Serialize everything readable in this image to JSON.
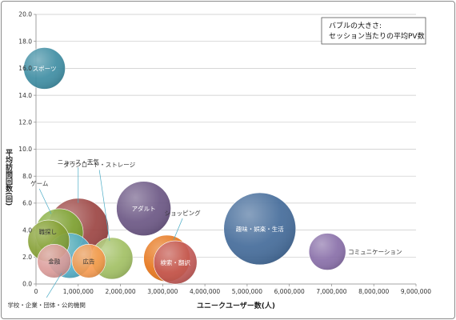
{
  "chart_data": {
    "type": "bubble",
    "title": "",
    "xlabel": "ユニークユーザー数(人)",
    "ylabel": "平均訪問回数(回)",
    "xlim": [
      0,
      9000000
    ],
    "ylim": [
      0,
      20
    ],
    "x_ticks": [
      "0",
      "1,000,000",
      "2,000,000",
      "3,000,000",
      "4,000,000",
      "5,000,000",
      "6,000,000",
      "7,000,000",
      "8,000,000",
      "9,000,000"
    ],
    "y_ticks": [
      "0.0",
      "2.0",
      "4.0",
      "6.0",
      "8.0",
      "10.0",
      "12.0",
      "14.0",
      "16.0",
      "18.0",
      "20.0"
    ],
    "grid": true,
    "legend": "none",
    "note": {
      "line1": "バブルの大きさ:",
      "line2": "セッション当たりの平均PV数"
    },
    "series": [
      {
        "label": "スポーツ",
        "x": 200000,
        "y": 16.0,
        "size": 26,
        "color": "#31859c",
        "label_color": "#ffffff",
        "label_pos": "inside",
        "anchor_x": 200000,
        "anchor_y": 16.0
      },
      {
        "label": "ニュース・天気",
        "x": 1000000,
        "y": 4.1,
        "size": 38,
        "color": "#953735",
        "label_color": "#333333",
        "label_pos": "callout",
        "anchor_x": 1000000,
        "anchor_y": 8.9
      },
      {
        "label": "ゲーム",
        "x": 550000,
        "y": 3.8,
        "size": 30,
        "color": "#7aa62e",
        "label_color": "#333333",
        "label_pos": "callout",
        "anchor_x": 80000,
        "anchor_y": 7.3
      },
      {
        "label": "職探し",
        "x": 300000,
        "y": 3.2,
        "size": 26,
        "color": "#7f9b2a",
        "label_color": "#333333",
        "label_pos": "inside-left",
        "anchor_x": 30000,
        "anchor_y": 3.9
      },
      {
        "label": "学校・企業・団体・公的機関",
        "x": 800000,
        "y": 2.1,
        "size": 28,
        "color": "#4bacc6",
        "label_color": "#333333",
        "label_pos": "callout",
        "anchor_x": 250000,
        "anchor_y": -1.6
      },
      {
        "label": "金融",
        "x": 430000,
        "y": 1.7,
        "size": 21,
        "color": "#d99694",
        "label_color": "#333333",
        "label_pos": "inside",
        "anchor_x": 430000,
        "anchor_y": 1.7
      },
      {
        "label": "広告",
        "x": 1250000,
        "y": 1.7,
        "size": 21,
        "color": "#f79646",
        "label_color": "#333333",
        "label_pos": "inside",
        "anchor_x": 1250000,
        "anchor_y": 1.7
      },
      {
        "label": "ダウンロード・ストレージ",
        "x": 1800000,
        "y": 1.9,
        "size": 26,
        "color": "#9bbb59",
        "label_color": "#333333",
        "label_pos": "callout",
        "anchor_x": 1500000,
        "anchor_y": 8.7
      },
      {
        "label": "アダルト",
        "x": 2550000,
        "y": 5.6,
        "size": 34,
        "color": "#604a7b",
        "label_color": "#ffffff",
        "label_pos": "inside",
        "anchor_x": 2550000,
        "anchor_y": 5.6
      },
      {
        "label": "ショッピング",
        "x": 3100000,
        "y": 1.9,
        "size": 29,
        "color": "#e46c0a",
        "label_color": "#333333",
        "label_pos": "callout",
        "anchor_x": 3470000,
        "anchor_y": 5.1
      },
      {
        "label": "検索・翻訳",
        "x": 3300000,
        "y": 1.6,
        "size": 27,
        "color": "#c0504d",
        "label_color": "#ffffff",
        "label_pos": "inside",
        "anchor_x": 3300000,
        "anchor_y": 1.6
      },
      {
        "label": "趣味・娯楽・生活",
        "x": 5300000,
        "y": 4.1,
        "size": 45,
        "color": "#366092",
        "label_color": "#ffffff",
        "label_pos": "inside",
        "anchor_x": 5300000,
        "anchor_y": 4.1
      },
      {
        "label": "コミュニケーション",
        "x": 6900000,
        "y": 2.4,
        "size": 23,
        "color": "#8064a2",
        "label_color": "#333333",
        "label_pos": "right",
        "anchor_x": 6900000,
        "anchor_y": 2.4
      }
    ]
  }
}
